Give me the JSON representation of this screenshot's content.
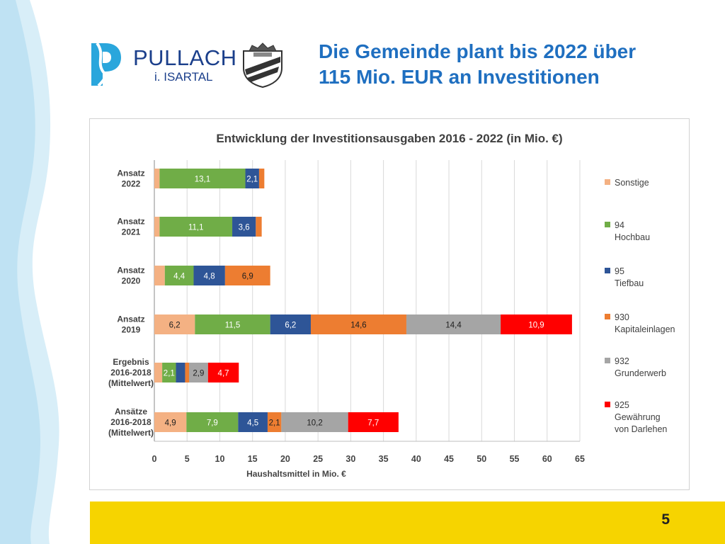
{
  "header": {
    "logo_name": "PULLACH",
    "logo_sub": "i. ISARTAL",
    "headline_line1": "Die Gemeinde plant bis 2022 über",
    "headline_line2": "115 Mio. EUR an Investitionen"
  },
  "footer": {
    "page_number": "5"
  },
  "colors": {
    "wave": "#bfe2f3",
    "logo_blue": "#1b3f8b",
    "logo_cyan": "#2aa6dc",
    "headline": "#1f6fc0",
    "footer_band": "#f6d400"
  },
  "chart_data": {
    "type": "bar",
    "orientation": "horizontal",
    "stacked": true,
    "title": "Entwicklung der Investitionsausgaben 2016 - 2022 (in Mio. €)",
    "xlabel": "Haushaltsmittel in Mio. €",
    "ylabel": "",
    "xlim": [
      0,
      65
    ],
    "xticks": [
      0,
      5,
      10,
      15,
      20,
      25,
      30,
      35,
      40,
      45,
      50,
      55,
      60,
      65
    ],
    "grid": "vertical",
    "legend_position": "right",
    "categories": [
      [
        "Ansatz",
        "2022"
      ],
      [
        "Ansatz",
        "2021"
      ],
      [
        "Ansatz",
        "2020"
      ],
      [
        "Ansatz",
        "2019"
      ],
      [
        "Ergebnis",
        "2016-2018",
        "(Mittelwert)"
      ],
      [
        "Ansätze",
        "2016-2018",
        "(Mittelwert)"
      ]
    ],
    "series": [
      {
        "name": [
          "Sonstige"
        ],
        "color": "#f4b183",
        "values": [
          0.8,
          0.8,
          1.6,
          6.2,
          1.2,
          4.9
        ],
        "labels": [
          "",
          "",
          "",
          "6,2",
          "",
          "4,9"
        ]
      },
      {
        "name": [
          "94",
          "Hochbau"
        ],
        "color": "#70ad47",
        "values": [
          13.1,
          11.1,
          4.4,
          11.5,
          2.1,
          7.9
        ],
        "labels": [
          "13,1",
          "11,1",
          "4,4",
          "11,5",
          "2,1",
          "7,9"
        ]
      },
      {
        "name": [
          "95",
          "Tiefbau"
        ],
        "color": "#2e5597",
        "values": [
          2.1,
          3.6,
          4.8,
          6.2,
          1.4,
          4.5
        ],
        "labels": [
          "2,1",
          "3,6",
          "4,8",
          "6,2",
          "",
          "4,5"
        ]
      },
      {
        "name": [
          "930",
          "Kapitaleinlagen"
        ],
        "color": "#ed7d31",
        "values": [
          0.8,
          0.9,
          6.9,
          14.6,
          0.6,
          2.1
        ],
        "labels": [
          "",
          "",
          "6,9",
          "14,6",
          "",
          "2,1"
        ]
      },
      {
        "name": [
          "932",
          "Grunderwerb"
        ],
        "color": "#a5a5a5",
        "values": [
          0,
          0,
          0,
          14.4,
          2.9,
          10.2
        ],
        "labels": [
          "",
          "",
          "",
          "14,4",
          "2,9",
          "10,2"
        ]
      },
      {
        "name": [
          "925",
          "Gewährung",
          "von Darlehen"
        ],
        "color": "#ff0000",
        "values": [
          0,
          0,
          0,
          10.9,
          4.7,
          7.7
        ],
        "labels": [
          "",
          "",
          "",
          "10,9",
          "4,7",
          "7,7"
        ]
      }
    ]
  }
}
